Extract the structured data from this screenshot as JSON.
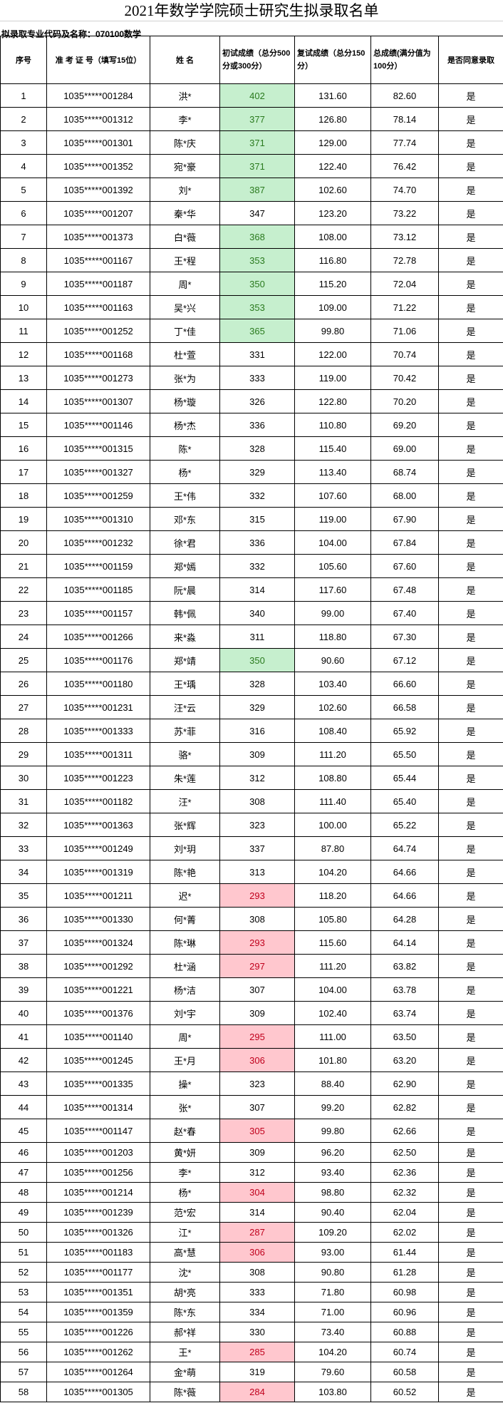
{
  "title": "2021年数学学院硕士研究生拟录取名单",
  "subtitle": "拟录取专业代码及名称：070100数学",
  "colors": {
    "pass_bg": "#c6efce",
    "pass_text": "#2a7a1e",
    "low_bg": "#ffc7ce",
    "low_text": "#c0001c"
  },
  "columns": [
    "序号",
    "准 考 证 号（填写15位）",
    "姓  名",
    "初试成绩（总分500分或300分）",
    "复试成绩（总分150分）",
    "总成绩(满分值为100分）",
    "是否同意录取"
  ],
  "rows": [
    [
      "1",
      "1035*****001284",
      "洪*",
      "402",
      "131.60",
      "82.60",
      "是",
      "green"
    ],
    [
      "2",
      "1035*****001312",
      "李*",
      "377",
      "126.80",
      "78.14",
      "是",
      "green"
    ],
    [
      "3",
      "1035*****001301",
      "陈*庆",
      "371",
      "129.00",
      "77.74",
      "是",
      "green"
    ],
    [
      "4",
      "1035*****001352",
      "宛*豪",
      "371",
      "122.40",
      "76.42",
      "是",
      "green"
    ],
    [
      "5",
      "1035*****001392",
      "刘*",
      "387",
      "102.60",
      "74.70",
      "是",
      "green"
    ],
    [
      "6",
      "1035*****001207",
      "秦*华",
      "347",
      "123.20",
      "73.22",
      "是",
      ""
    ],
    [
      "7",
      "1035*****001373",
      "白*薇",
      "368",
      "108.00",
      "73.12",
      "是",
      "green"
    ],
    [
      "8",
      "1035*****001167",
      "王*程",
      "353",
      "116.80",
      "72.78",
      "是",
      "green"
    ],
    [
      "9",
      "1035*****001187",
      "周*",
      "350",
      "115.20",
      "72.04",
      "是",
      "green"
    ],
    [
      "10",
      "1035*****001163",
      "吴*兴",
      "353",
      "109.00",
      "71.22",
      "是",
      "green"
    ],
    [
      "11",
      "1035*****001252",
      "丁*佳",
      "365",
      "99.80",
      "71.06",
      "是",
      "green"
    ],
    [
      "12",
      "1035*****001168",
      "杜*萱",
      "331",
      "122.00",
      "70.74",
      "是",
      ""
    ],
    [
      "13",
      "1035*****001273",
      "张*为",
      "333",
      "119.00",
      "70.42",
      "是",
      ""
    ],
    [
      "14",
      "1035*****001307",
      "杨*璇",
      "326",
      "122.80",
      "70.20",
      "是",
      ""
    ],
    [
      "15",
      "1035*****001146",
      "杨*杰",
      "336",
      "110.80",
      "69.20",
      "是",
      ""
    ],
    [
      "16",
      "1035*****001315",
      "陈*",
      "328",
      "115.40",
      "69.00",
      "是",
      ""
    ],
    [
      "17",
      "1035*****001327",
      "杨*",
      "329",
      "113.40",
      "68.74",
      "是",
      ""
    ],
    [
      "18",
      "1035*****001259",
      "王*伟",
      "332",
      "107.60",
      "68.00",
      "是",
      ""
    ],
    [
      "19",
      "1035*****001310",
      "邓*东",
      "315",
      "119.00",
      "67.90",
      "是",
      ""
    ],
    [
      "20",
      "1035*****001232",
      "徐*君",
      "336",
      "104.00",
      "67.84",
      "是",
      ""
    ],
    [
      "21",
      "1035*****001159",
      "郑*嫣",
      "332",
      "105.60",
      "67.60",
      "是",
      ""
    ],
    [
      "22",
      "1035*****001185",
      "阮*晨",
      "314",
      "117.60",
      "67.48",
      "是",
      ""
    ],
    [
      "23",
      "1035*****001157",
      "韩*佩",
      "340",
      "99.00",
      "67.40",
      "是",
      ""
    ],
    [
      "24",
      "1035*****001266",
      "来*淼",
      "311",
      "118.80",
      "67.30",
      "是",
      ""
    ],
    [
      "25",
      "1035*****001176",
      "郑*靖",
      "350",
      "90.60",
      "67.12",
      "是",
      "green"
    ],
    [
      "26",
      "1035*****001180",
      "王*瑀",
      "328",
      "103.40",
      "66.60",
      "是",
      ""
    ],
    [
      "27",
      "1035*****001231",
      "汪*云",
      "329",
      "102.60",
      "66.58",
      "是",
      ""
    ],
    [
      "28",
      "1035*****001333",
      "苏*菲",
      "316",
      "108.40",
      "65.92",
      "是",
      ""
    ],
    [
      "29",
      "1035*****001311",
      "骆*",
      "309",
      "111.20",
      "65.50",
      "是",
      ""
    ],
    [
      "30",
      "1035*****001223",
      "朱*莲",
      "312",
      "108.80",
      "65.44",
      "是",
      ""
    ],
    [
      "31",
      "1035*****001182",
      "汪*",
      "308",
      "111.40",
      "65.40",
      "是",
      ""
    ],
    [
      "32",
      "1035*****001363",
      "张*辉",
      "323",
      "100.00",
      "65.22",
      "是",
      ""
    ],
    [
      "33",
      "1035*****001249",
      "刘*玥",
      "337",
      "87.80",
      "64.74",
      "是",
      ""
    ],
    [
      "34",
      "1035*****001319",
      "陈*艳",
      "313",
      "104.20",
      "64.66",
      "是",
      ""
    ],
    [
      "35",
      "1035*****001211",
      "迟*",
      "293",
      "118.20",
      "64.66",
      "是",
      "red"
    ],
    [
      "36",
      "1035*****001330",
      "何*菁",
      "308",
      "105.80",
      "64.28",
      "是",
      ""
    ],
    [
      "37",
      "1035*****001324",
      "陈*琳",
      "293",
      "115.60",
      "64.14",
      "是",
      "red"
    ],
    [
      "38",
      "1035*****001292",
      "杜*涵",
      "297",
      "111.20",
      "63.82",
      "是",
      "red"
    ],
    [
      "39",
      "1035*****001221",
      "杨*洁",
      "307",
      "104.00",
      "63.78",
      "是",
      ""
    ],
    [
      "40",
      "1035*****001376",
      "刘*宇",
      "309",
      "102.40",
      "63.74",
      "是",
      ""
    ],
    [
      "41",
      "1035*****001140",
      "周*",
      "295",
      "111.00",
      "63.50",
      "是",
      "red"
    ],
    [
      "42",
      "1035*****001245",
      "王*月",
      "306",
      "101.80",
      "63.20",
      "是",
      "red"
    ],
    [
      "43",
      "1035*****001335",
      "操*",
      "323",
      "88.40",
      "62.90",
      "是",
      ""
    ],
    [
      "44",
      "1035*****001314",
      "张*",
      "307",
      "99.20",
      "62.82",
      "是",
      ""
    ],
    [
      "45",
      "1035*****001147",
      "赵*春",
      "305",
      "99.80",
      "62.66",
      "是",
      "red"
    ],
    [
      "46",
      "1035*****001203",
      "黄*妍",
      "309",
      "96.20",
      "62.50",
      "是",
      ""
    ],
    [
      "47",
      "1035*****001256",
      "李*",
      "312",
      "93.40",
      "62.36",
      "是",
      ""
    ],
    [
      "48",
      "1035*****001214",
      "杨*",
      "304",
      "98.80",
      "62.32",
      "是",
      "red"
    ],
    [
      "49",
      "1035*****001239",
      "范*宏",
      "314",
      "90.40",
      "62.04",
      "是",
      ""
    ],
    [
      "50",
      "1035*****001326",
      "江*",
      "287",
      "109.20",
      "62.02",
      "是",
      "red"
    ],
    [
      "51",
      "1035*****001183",
      "高*慧",
      "306",
      "93.00",
      "61.44",
      "是",
      "red"
    ],
    [
      "52",
      "1035*****001177",
      "沈*",
      "308",
      "90.80",
      "61.28",
      "是",
      ""
    ],
    [
      "53",
      "1035*****001351",
      "胡*亮",
      "333",
      "71.80",
      "60.98",
      "是",
      ""
    ],
    [
      "54",
      "1035*****001359",
      "陈*东",
      "334",
      "71.00",
      "60.96",
      "是",
      ""
    ],
    [
      "55",
      "1035*****001226",
      "郝*祥",
      "330",
      "73.40",
      "60.88",
      "是",
      ""
    ],
    [
      "56",
      "1035*****001262",
      "王*",
      "285",
      "104.20",
      "60.74",
      "是",
      "red"
    ],
    [
      "57",
      "1035*****001264",
      "金*萌",
      "319",
      "79.60",
      "60.58",
      "是",
      ""
    ],
    [
      "58",
      "1035*****001305",
      "陈*薇",
      "284",
      "103.80",
      "60.52",
      "是",
      "red"
    ]
  ]
}
